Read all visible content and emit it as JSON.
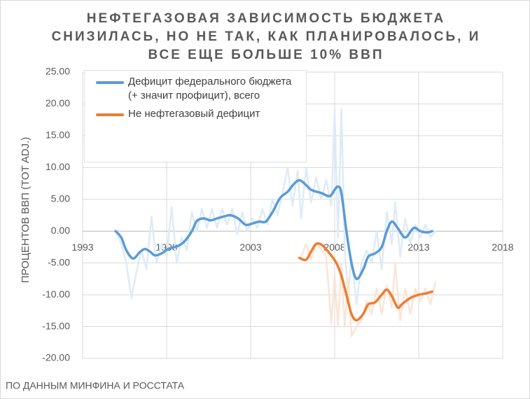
{
  "chart_data": {
    "type": "line",
    "title": "НЕФТЕГАЗОВАЯ ЗАВИСИМОСТЬ БЮДЖЕТА СНИЗИЛАСЬ, НО НЕ ТАК, КАК ПЛАНИРОВАЛОСЬ, И ВСЕ ЕЩЕ БОЛЬШЕ 10% ВВП",
    "y_label": "ПРОЦЕНТОВ ВВП (TOT ADJ.)",
    "source": "ПО ДАННЫМ МИНФИНА И РОССТАТА",
    "xlim": [
      1993,
      2018
    ],
    "xticks": [
      1993,
      1998,
      2003,
      2008,
      2013,
      2018
    ],
    "ylim": [
      -20,
      25
    ],
    "yticks": [
      {
        "value": 25,
        "label": "25.00"
      },
      {
        "value": 20,
        "label": "20.00"
      },
      {
        "value": 15,
        "label": "15.00"
      },
      {
        "value": 10,
        "label": "10.00"
      },
      {
        "value": 5,
        "label": "5.00"
      },
      {
        "value": 0,
        "label": "0.00"
      },
      {
        "value": -5,
        "label": "-5.00"
      },
      {
        "value": -10,
        "label": "-10.00"
      },
      {
        "value": -15,
        "label": "-15.00"
      },
      {
        "value": -20,
        "label": "-20.00"
      }
    ],
    "grid": true,
    "legend": "top-left",
    "series": [
      {
        "color": "#deebf7",
        "smooth": false,
        "x": [
          1995.0,
          1995.3,
          1995.6,
          1995.9,
          1996.2,
          1996.5,
          1996.8,
          1997.1,
          1997.4,
          1997.7,
          1998.0,
          1998.3,
          1998.6,
          1998.9,
          1999.2,
          1999.5,
          1999.8,
          2000.1,
          2000.4,
          2000.7,
          2001.0,
          2001.3,
          2001.6,
          2001.9,
          2002.2,
          2002.5,
          2002.8,
          2003.1,
          2003.4,
          2003.7,
          2004.0,
          2004.3,
          2004.6,
          2004.9,
          2005.2,
          2005.5,
          2005.8,
          2006.0,
          2006.3,
          2006.6,
          2006.9,
          2007.2,
          2007.5,
          2007.8,
          2008.0,
          2008.2,
          2008.4,
          2008.6,
          2008.8,
          2009.0,
          2009.3,
          2009.6,
          2009.9,
          2010.2,
          2010.5,
          2010.8,
          2011.1,
          2011.4,
          2011.6,
          2011.9,
          2012.2,
          2012.5,
          2012.8,
          2013.1,
          2013.4,
          2013.7,
          2014.0
        ],
        "values": [
          0,
          -2,
          -5,
          -10.5,
          -6.5,
          -3,
          -6,
          2.3,
          -5,
          -2,
          -4,
          3.8,
          -5,
          -1,
          -3,
          3,
          0,
          3.5,
          0.5,
          3.5,
          0.5,
          3.5,
          1,
          3.5,
          -0.5,
          3,
          0,
          2,
          0.5,
          3.5,
          1,
          5,
          2.5,
          6,
          10,
          4,
          9.5,
          2,
          10,
          4.5,
          8.5,
          5,
          8,
          4,
          19,
          -1,
          19.2,
          -3,
          -10,
          -4,
          -11.5,
          -5,
          -3,
          -5,
          0,
          -6,
          3,
          -2,
          4.5,
          -4,
          2,
          -2,
          1,
          -1,
          1,
          -1,
          0
        ]
      },
      {
        "color": "#fbe5d6",
        "smooth": false,
        "x": [
          2006.0,
          2006.3,
          2006.6,
          2006.9,
          2007.2,
          2007.5,
          2007.8,
          2008.0,
          2008.2,
          2008.4,
          2008.6,
          2008.8,
          2009.0,
          2009.3,
          2009.6,
          2009.9,
          2010.2,
          2010.5,
          2010.8,
          2011.1,
          2011.4,
          2011.6,
          2011.9,
          2012.2,
          2012.5,
          2012.8,
          2013.1,
          2013.4,
          2013.7,
          2014.0
        ],
        "values": [
          -4,
          -2,
          -4.5,
          -2,
          -2.8,
          -4,
          -14.5,
          -7,
          -15,
          -5,
          -15,
          -7.5,
          -16.5,
          -15,
          -14,
          -11,
          -13,
          -9,
          -13,
          -8.5,
          -12,
          -5,
          -14,
          -9,
          -13,
          -9,
          -11,
          -9,
          -11.5,
          -8
        ]
      },
      {
        "name": "Дефицит федерального бюджета (+ значит профицит), всего",
        "color": "#5b9bd5",
        "smooth": true,
        "x": [
          1994.96,
          1995.3,
          1995.6,
          1996.0,
          1996.4,
          1996.7,
          1997.0,
          1997.3,
          1997.7,
          1998.1,
          1998.7,
          1999.1,
          1999.5,
          1999.8,
          2000.2,
          2000.6,
          2001.0,
          2001.4,
          2001.8,
          2002.25,
          2002.7,
          2003.1,
          2003.5,
          2003.9,
          2004.3,
          2004.75,
          2005.2,
          2005.6,
          2005.9,
          2006.2,
          2006.6,
          2007.2,
          2007.7,
          2008.0,
          2008.2,
          2008.4,
          2008.7,
          2009.0,
          2009.3,
          2009.7,
          2010.0,
          2010.4,
          2010.8,
          2011.1,
          2011.4,
          2011.75,
          2012.2,
          2012.7,
          2013.1,
          2013.5,
          2013.8
        ],
        "values": [
          0,
          -1,
          -3,
          -4.3,
          -3.3,
          -2.8,
          -3.2,
          -3.8,
          -3.5,
          -2.8,
          -2.3,
          -1.5,
          0,
          1.6,
          2,
          1.7,
          2,
          2.3,
          2.5,
          2,
          1,
          1.2,
          1.5,
          1.5,
          3,
          5.2,
          6.2,
          7.5,
          8,
          7.5,
          6.5,
          6,
          5.5,
          6.5,
          7,
          6,
          0,
          -5,
          -7.5,
          -6,
          -4,
          -3.5,
          -2.5,
          0,
          1.5,
          0.5,
          -1,
          0.5,
          0,
          -0.2,
          0
        ]
      },
      {
        "name": "Не нефтегазовый дефицит",
        "color": "#ed7d31",
        "smooth": true,
        "x": [
          2005.9,
          2006.3,
          2006.6,
          2006.9,
          2007.25,
          2007.7,
          2008.1,
          2008.4,
          2008.7,
          2009.0,
          2009.3,
          2009.7,
          2010.0,
          2010.4,
          2010.8,
          2011.1,
          2011.4,
          2011.75,
          2012.0,
          2012.5,
          2013.0,
          2013.4,
          2013.8
        ],
        "values": [
          -4.2,
          -4.5,
          -3.2,
          -2,
          -2.2,
          -3.5,
          -5,
          -7,
          -10,
          -13,
          -14,
          -13,
          -11.5,
          -11.2,
          -10,
          -9.2,
          -10.2,
          -12,
          -11.5,
          -10.5,
          -10,
          -9.8,
          -9.5
        ]
      }
    ]
  }
}
